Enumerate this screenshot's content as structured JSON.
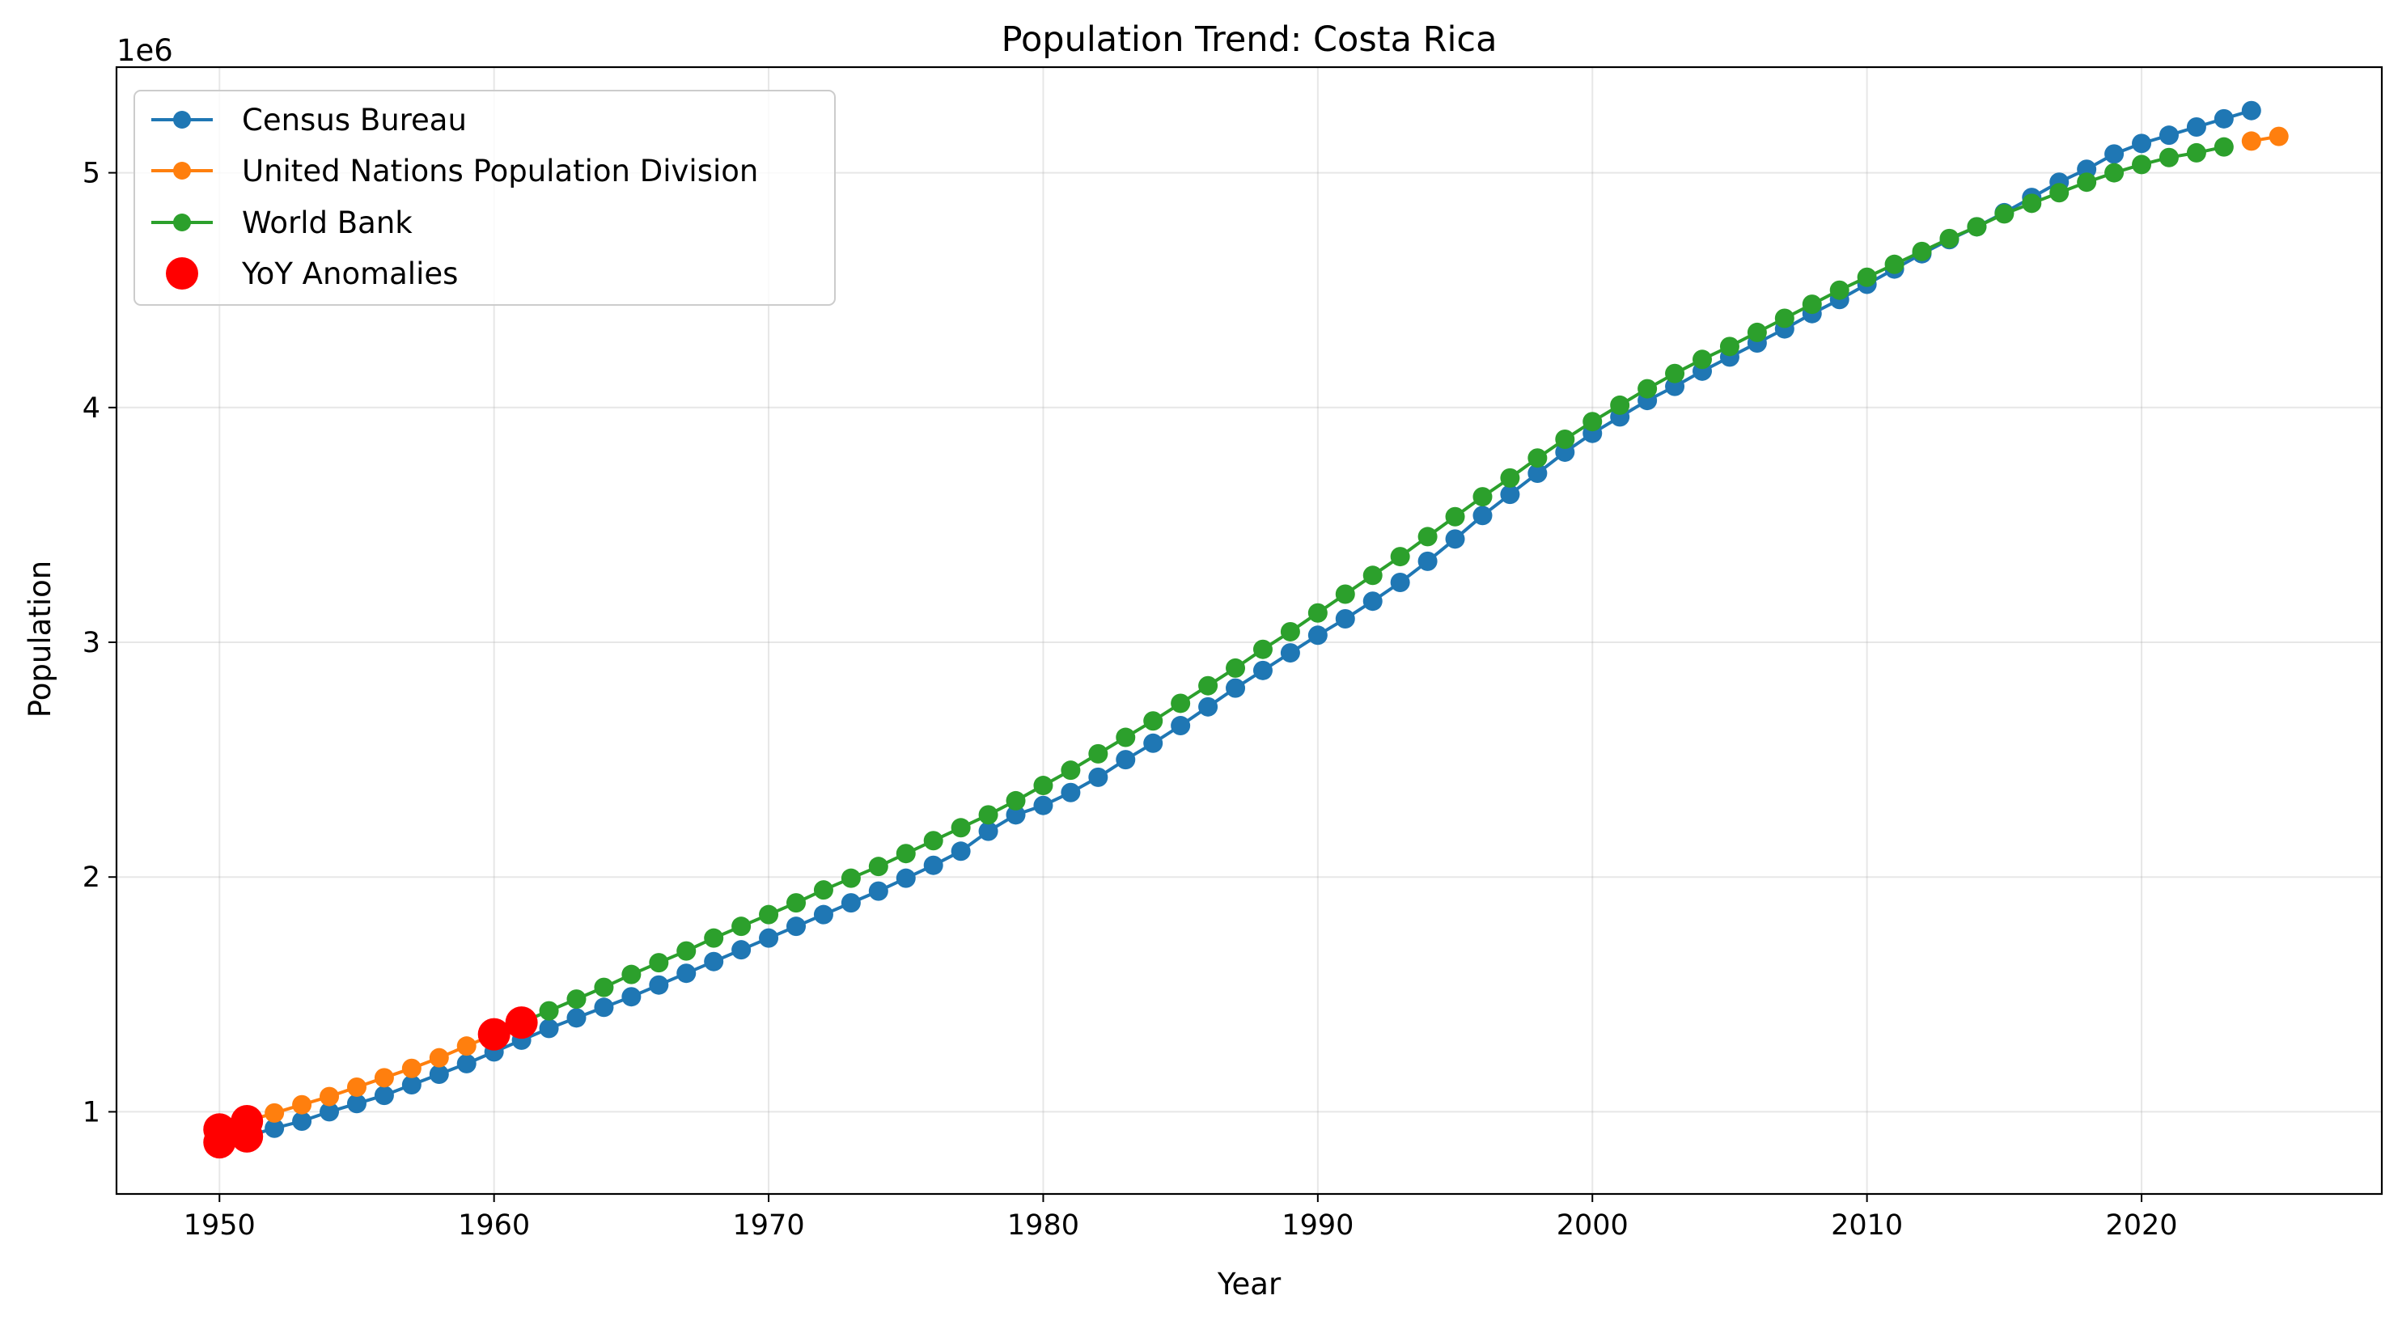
{
  "chart_data": {
    "type": "line",
    "title": "Population Trend: Costa Rica",
    "xlabel": "Year",
    "ylabel": "Population",
    "y_offset_label": "1e6",
    "xlim": [
      1946.25,
      2028.75
    ],
    "ylim": [
      650000,
      5450000
    ],
    "x_ticks": [
      1950,
      1960,
      1970,
      1980,
      1990,
      2000,
      2010,
      2020
    ],
    "x_tick_labels": [
      "1950",
      "1960",
      "1970",
      "1980",
      "1990",
      "2000",
      "2010",
      "2020"
    ],
    "y_ticks": [
      1000000,
      2000000,
      3000000,
      4000000,
      5000000
    ],
    "y_tick_labels": [
      "1",
      "2",
      "3",
      "4",
      "5"
    ],
    "grid": true,
    "legend_position": "top-left",
    "series": [
      {
        "name": "Census Bureau",
        "color": "#1f77b4",
        "x": [
          1950,
          1951,
          1952,
          1953,
          1954,
          1955,
          1956,
          1957,
          1958,
          1959,
          1960,
          1961,
          1962,
          1963,
          1964,
          1965,
          1966,
          1967,
          1968,
          1969,
          1970,
          1971,
          1972,
          1973,
          1974,
          1975,
          1976,
          1977,
          1978,
          1979,
          1980,
          1981,
          1982,
          1983,
          1984,
          1985,
          1986,
          1987,
          1988,
          1989,
          1990,
          1991,
          1992,
          1993,
          1994,
          1995,
          1996,
          1997,
          1998,
          1999,
          2000,
          2001,
          2002,
          2003,
          2004,
          2005,
          2006,
          2007,
          2008,
          2009,
          2010,
          2011,
          2012,
          2013,
          2014,
          2015,
          2016,
          2017,
          2018,
          2019,
          2020,
          2021,
          2022,
          2023,
          2024
        ],
        "y": [
          870000,
          895000,
          930000,
          960000,
          1000000,
          1035000,
          1070000,
          1115000,
          1160000,
          1205000,
          1255000,
          1305000,
          1355000,
          1400000,
          1445000,
          1490000,
          1540000,
          1590000,
          1640000,
          1690000,
          1740000,
          1790000,
          1840000,
          1890000,
          1940000,
          1995000,
          2050000,
          2110000,
          2195000,
          2265000,
          2305000,
          2360000,
          2425000,
          2500000,
          2570000,
          2645000,
          2725000,
          2805000,
          2880000,
          2955000,
          3030000,
          3100000,
          3175000,
          3255000,
          3345000,
          3440000,
          3540000,
          3630000,
          3720000,
          3810000,
          3890000,
          3960000,
          4030000,
          4090000,
          4155000,
          4215000,
          4275000,
          4335000,
          4400000,
          4460000,
          4525000,
          4590000,
          4655000,
          4715000,
          4770000,
          4830000,
          4895000,
          4960000,
          5015000,
          5080000,
          5125000,
          5160000,
          5195000,
          5230000,
          5265000
        ]
      },
      {
        "name": "United Nations Population Division",
        "color": "#ff7f0e",
        "x": [
          1950,
          1951,
          1952,
          1953,
          1954,
          1955,
          1956,
          1957,
          1958,
          1959,
          1960,
          1961,
          2024,
          2025
        ],
        "y": [
          925000,
          960000,
          995000,
          1030000,
          1065000,
          1105000,
          1145000,
          1185000,
          1230000,
          1280000,
          1330000,
          1380000,
          5135000,
          5155000
        ]
      },
      {
        "name": "World Bank",
        "color": "#2ca02c",
        "x": [
          1960,
          1961,
          1962,
          1963,
          1964,
          1965,
          1966,
          1967,
          1968,
          1969,
          1970,
          1971,
          1972,
          1973,
          1974,
          1975,
          1976,
          1977,
          1978,
          1979,
          1980,
          1981,
          1982,
          1983,
          1984,
          1985,
          1986,
          1987,
          1988,
          1989,
          1990,
          1991,
          1992,
          1993,
          1994,
          1995,
          1996,
          1997,
          1998,
          1999,
          2000,
          2001,
          2002,
          2003,
          2004,
          2005,
          2006,
          2007,
          2008,
          2009,
          2010,
          2011,
          2012,
          2013,
          2014,
          2015,
          2016,
          2017,
          2018,
          2019,
          2020,
          2021,
          2022,
          2023
        ],
        "y": [
          1335000,
          1380000,
          1430000,
          1480000,
          1530000,
          1585000,
          1635000,
          1685000,
          1740000,
          1790000,
          1840000,
          1890000,
          1945000,
          1995000,
          2045000,
          2100000,
          2155000,
          2210000,
          2265000,
          2325000,
          2390000,
          2455000,
          2525000,
          2595000,
          2665000,
          2740000,
          2815000,
          2890000,
          2970000,
          3045000,
          3125000,
          3205000,
          3285000,
          3365000,
          3450000,
          3535000,
          3620000,
          3700000,
          3785000,
          3865000,
          3940000,
          4010000,
          4080000,
          4145000,
          4205000,
          4260000,
          4320000,
          4380000,
          4440000,
          4500000,
          4555000,
          4610000,
          4665000,
          4720000,
          4770000,
          4825000,
          4870000,
          4915000,
          4960000,
          5000000,
          5035000,
          5065000,
          5085000,
          5110000
        ]
      }
    ],
    "anomalies": {
      "name": "YoY Anomalies",
      "color": "#ff0000",
      "x": [
        1950,
        1950,
        1951,
        1951,
        1960,
        1961
      ],
      "y": [
        870000,
        925000,
        895000,
        960000,
        1330000,
        1380000
      ]
    }
  }
}
